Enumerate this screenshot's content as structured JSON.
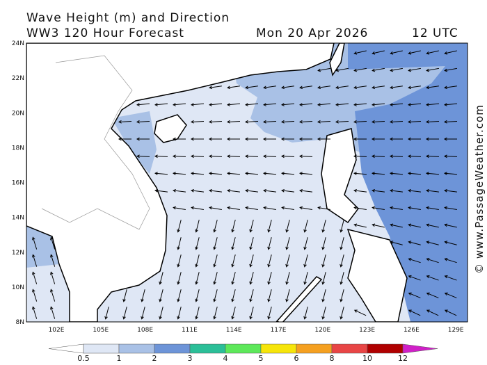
{
  "header": {
    "title": "Wave Height (m) and Direction",
    "subtitle": "WW3 120 Hour Forecast",
    "date": "Mon 20 Apr 2026",
    "time": "12 UTC"
  },
  "map": {
    "lat_labels": [
      "24N",
      "22N",
      "20N",
      "18N",
      "16N",
      "14N",
      "12N",
      "10N",
      "8N"
    ],
    "lon_labels": [
      "102E",
      "105E",
      "108E",
      "111E",
      "114E",
      "117E",
      "120E",
      "123E",
      "126E",
      "129E"
    ]
  },
  "colorbar": {
    "ticks": [
      0.5,
      1,
      2,
      3,
      4,
      5,
      6,
      8,
      10,
      12
    ],
    "colors": [
      "#ffffff",
      "#dfe7f5",
      "#a9c1e6",
      "#6d94d8",
      "#2bbf98",
      "#5de85a",
      "#f6e50a",
      "#f5a020",
      "#e84545",
      "#b00000",
      "#d020c8"
    ]
  },
  "watermark": "© www.PassageWeather.com"
}
